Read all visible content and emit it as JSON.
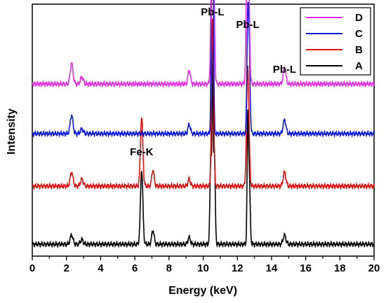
{
  "chart_data": {
    "type": "line",
    "title": "",
    "xlabel": "Energy (keV)",
    "ylabel": "Intensity",
    "xlim": [
      0,
      20
    ],
    "x_ticks": [
      0,
      2,
      4,
      6,
      8,
      10,
      12,
      14,
      16,
      18,
      20
    ],
    "y_ticks_shown": false,
    "grid": false,
    "legend_position": "top-right",
    "legend_entries": [
      "D",
      "C",
      "B",
      "A"
    ],
    "series": [
      {
        "name": "A",
        "color": "#000000",
        "offset": 0,
        "peaks": [
          {
            "x": 2.3,
            "height": 0.04,
            "width": 0.08
          },
          {
            "x": 2.9,
            "height": 0.02,
            "width": 0.08
          },
          {
            "x": 6.4,
            "height": 0.32,
            "width": 0.07
          },
          {
            "x": 7.06,
            "height": 0.06,
            "width": 0.07
          },
          {
            "x": 9.18,
            "height": 0.03,
            "width": 0.07
          },
          {
            "x": 10.45,
            "height": 0.4,
            "width": 0.05
          },
          {
            "x": 10.55,
            "height": 0.78,
            "width": 0.03
          },
          {
            "x": 10.65,
            "height": 0.42,
            "width": 0.05
          },
          {
            "x": 12.61,
            "height": 0.52,
            "width": 0.04
          },
          {
            "x": 12.7,
            "height": 0.28,
            "width": 0.05
          },
          {
            "x": 14.76,
            "height": 0.04,
            "width": 0.08
          }
        ]
      },
      {
        "name": "B",
        "color": "#dd1111",
        "offset": 1,
        "peaks": [
          {
            "x": 2.3,
            "height": 0.06,
            "width": 0.08
          },
          {
            "x": 2.9,
            "height": 0.03,
            "width": 0.08
          },
          {
            "x": 6.4,
            "height": 0.3,
            "width": 0.07
          },
          {
            "x": 7.06,
            "height": 0.07,
            "width": 0.07
          },
          {
            "x": 9.18,
            "height": 0.03,
            "width": 0.07
          },
          {
            "x": 10.55,
            "height": 0.72,
            "width": 0.06
          },
          {
            "x": 12.61,
            "height": 0.52,
            "width": 0.07
          },
          {
            "x": 14.76,
            "height": 0.06,
            "width": 0.08
          }
        ]
      },
      {
        "name": "C",
        "color": "#0a18d8",
        "offset": 2,
        "peaks": [
          {
            "x": 2.3,
            "height": 0.08,
            "width": 0.08
          },
          {
            "x": 2.9,
            "height": 0.02,
            "width": 0.08
          },
          {
            "x": 9.18,
            "height": 0.04,
            "width": 0.07
          },
          {
            "x": 10.5,
            "height": 0.7,
            "width": 0.04
          },
          {
            "x": 10.58,
            "height": 0.6,
            "width": 0.04
          },
          {
            "x": 12.61,
            "height": 0.5,
            "width": 0.05
          },
          {
            "x": 12.7,
            "height": 0.3,
            "width": 0.05
          },
          {
            "x": 14.76,
            "height": 0.06,
            "width": 0.08
          }
        ]
      },
      {
        "name": "D",
        "color": "#e22ee2",
        "offset": 3,
        "peaks": [
          {
            "x": 2.3,
            "height": 0.09,
            "width": 0.08
          },
          {
            "x": 2.9,
            "height": 0.03,
            "width": 0.08
          },
          {
            "x": 9.18,
            "height": 0.06,
            "width": 0.07
          },
          {
            "x": 10.55,
            "height": 1.1,
            "width": 0.07
          },
          {
            "x": 12.61,
            "height": 0.85,
            "width": 0.07
          },
          {
            "x": 14.76,
            "height": 0.07,
            "width": 0.08
          }
        ]
      }
    ],
    "annotations": [
      {
        "text": "Pb-L",
        "x": 10.55
      },
      {
        "text": "Pb-L",
        "x": 12.61
      },
      {
        "text": "Pb-L",
        "x": 14.76
      },
      {
        "text": "Fe-K",
        "x": 6.4
      }
    ]
  }
}
